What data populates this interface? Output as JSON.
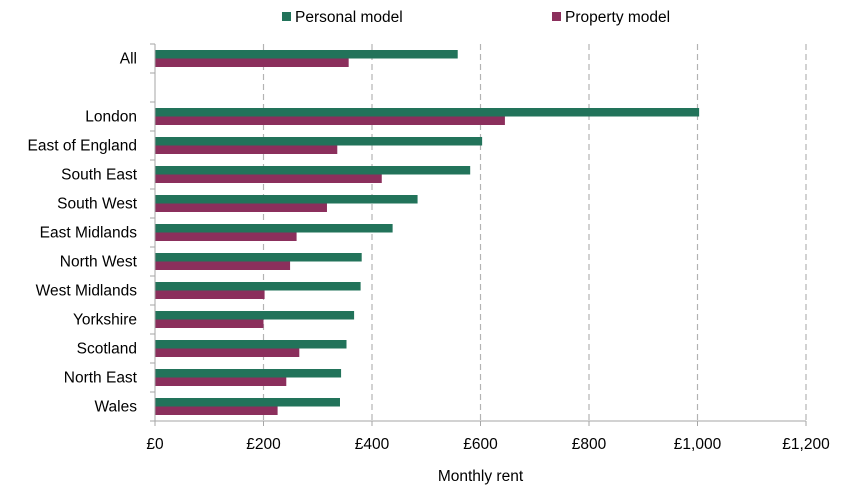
{
  "chart_data": {
    "type": "bar",
    "orientation": "horizontal",
    "title": "",
    "xlabel": "Monthly rent",
    "ylabel": "",
    "xlim": [
      0,
      1200
    ],
    "x_ticks": [
      0,
      200,
      400,
      600,
      800,
      1000,
      1200
    ],
    "x_tick_labels": [
      "£0",
      "£200",
      "£400",
      "£600",
      "£800",
      "£1,000",
      "£1,200"
    ],
    "grid": "vertical dashed",
    "legend_position": "top",
    "categories": [
      "All",
      "",
      "London",
      "East of England",
      "South East",
      "South West",
      "East Midlands",
      "North West",
      "West Midlands",
      "Yorkshire",
      "Scotland",
      "North East",
      "Wales"
    ],
    "series": [
      {
        "name": "Personal model",
        "color": "#22735a",
        "values": [
          558,
          null,
          1003,
          603,
          581,
          484,
          438,
          381,
          379,
          367,
          353,
          343,
          341
        ]
      },
      {
        "name": "Property model",
        "color": "#8b2f5c",
        "values": [
          357,
          null,
          645,
          336,
          418,
          317,
          261,
          249,
          202,
          200,
          266,
          242,
          226
        ]
      }
    ]
  }
}
